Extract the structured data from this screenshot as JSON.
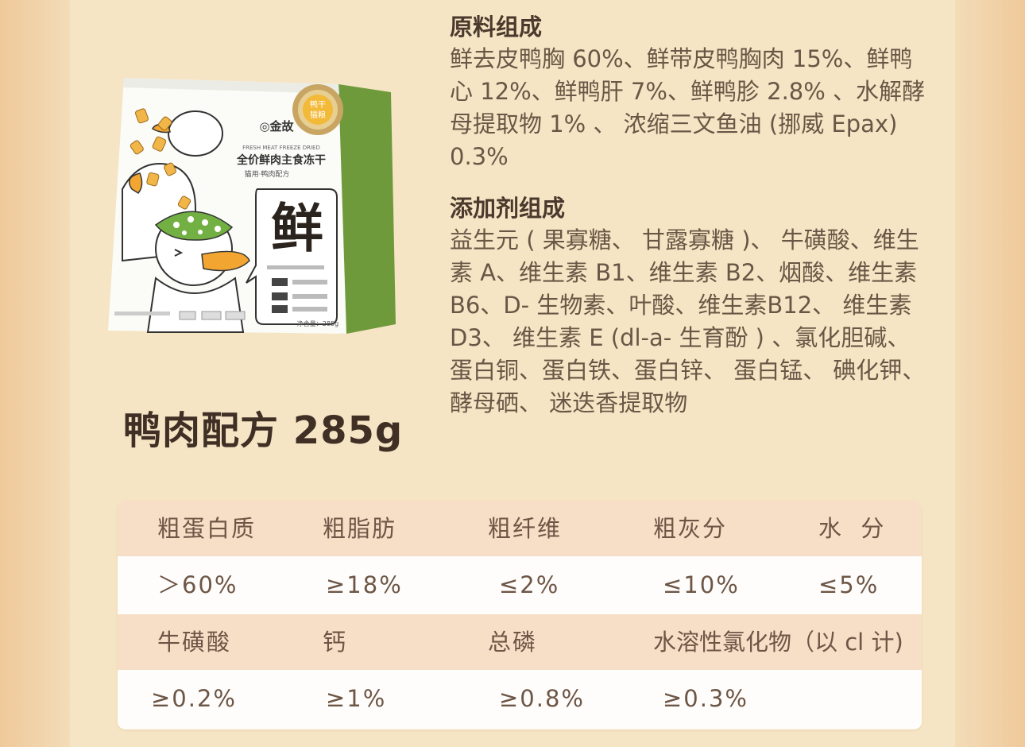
{
  "product": {
    "title": "鸭肉配方 285g",
    "package": {
      "brand": "◎金故",
      "line_en": "FRESH MEAT FREEZE DRIED",
      "line_cn": "全价鲜肉主食冻干",
      "line_sub": "猫用·鸭肉配方",
      "badge": "鲜",
      "seal": "鸭干\n猫粮",
      "weight": "净含量：285g"
    }
  },
  "ingredients": {
    "heading": "原料组成",
    "text": "鲜去皮鸭胸 60%、鲜带皮鸭胸肉 15%、鲜鸭心 12%、鲜鸭肝 7%、鲜鸭胗 2.8% 、水解酵母提取物 1% 、 浓缩三文鱼油 (挪威 Epax) 0.3%"
  },
  "additives": {
    "heading": "添加剂组成",
    "text": "益生元 ( 果寡糖、 甘露寡糖 )、 牛磺酸、维生素 A、维生素 B1、维生素 B2、烟酸、维生素 B6、D- 生物素、叶酸、维生素B12、 维生素 D3、 维生素 E (dl-a- 生育酚 ) 、氯化胆碱、蛋白铜、蛋白铁、蛋白锌、 蛋白锰、 碘化钾、 酵母硒、 迷迭香提取物"
  },
  "nutrition": {
    "headers_1": [
      "粗蛋白质",
      "粗脂肪",
      "粗纤维",
      "粗灰分",
      "水  分"
    ],
    "values_1": [
      "＞60%",
      "≥18%",
      "≤2%",
      "≤10%",
      "≤5%"
    ],
    "headers_2": [
      "牛磺酸",
      "钙",
      "总磷",
      "水溶性氯化物（以 cl 计)"
    ],
    "values_2": [
      "≥0.2%",
      "≥1%",
      "≥0.8%",
      "≥0.3%"
    ]
  },
  "colors": {
    "background": "#f6e5c4",
    "table_header": "#f7dfc7",
    "package_green": "#6f9a3c",
    "duck_orange": "#f2a531"
  }
}
